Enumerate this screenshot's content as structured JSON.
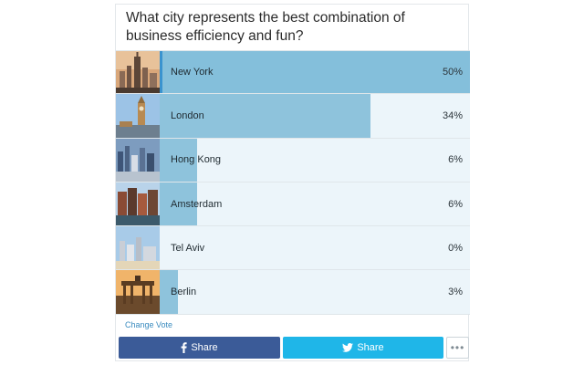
{
  "poll": {
    "question": "What city represents the best combination of business efficiency and fun?",
    "options": [
      {
        "label": "New York",
        "percent_text": "50%",
        "percent": 50,
        "selected": true,
        "thumb": "new-york-skyline-thumbnail"
      },
      {
        "label": "London",
        "percent_text": "34%",
        "percent": 34,
        "selected": false,
        "thumb": "london-big-ben-thumbnail"
      },
      {
        "label": "Hong Kong",
        "percent_text": "6%",
        "percent": 6,
        "selected": false,
        "thumb": "hong-kong-skyline-thumbnail"
      },
      {
        "label": "Amsterdam",
        "percent_text": "6%",
        "percent": 6,
        "selected": false,
        "thumb": "amsterdam-canal-houses-thumbnail"
      },
      {
        "label": "Tel Aviv",
        "percent_text": "0%",
        "percent": 0,
        "selected": false,
        "thumb": "tel-aviv-coast-thumbnail"
      },
      {
        "label": "Berlin",
        "percent_text": "3%",
        "percent": 3,
        "selected": false,
        "thumb": "berlin-brandenburg-gate-thumbnail"
      }
    ],
    "change_vote": "Change Vote"
  },
  "share": {
    "facebook_label": "Share",
    "twitter_label": "Share",
    "more_label": "•••",
    "facebook_icon": "facebook-icon",
    "twitter_icon": "twitter-icon",
    "colors": {
      "facebook": "#3b5b98",
      "twitter": "#1fb6e8",
      "bar": "#8ec3dc",
      "track": "#ecf5fa"
    }
  }
}
